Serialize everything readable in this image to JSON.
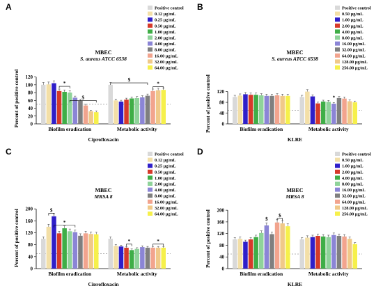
{
  "panels": [
    {
      "letter": "A",
      "title1": "MBEC",
      "title2": "S. aureus ATCC 6538",
      "ylabel": "Percent of positive control",
      "xlabel": "Ciprofloxacin",
      "yticks": [
        0,
        20,
        40,
        60,
        80,
        100,
        120
      ],
      "ymax": 130,
      "groups": [
        "Biofilm eradication",
        "Metabolic activity"
      ],
      "legend": [
        "Positive control",
        "0.12 µg/mL",
        "0.25 µg/mL",
        "0.50 µg/mL",
        "1.00 µg/mL",
        "2.00 µg/mL",
        "4.00 µg/mL",
        "8.00 µg/mL",
        "16.00 µg/mL",
        "32.00 µg/mL",
        "64.00 µg/mL"
      ],
      "colors": [
        "#d9d9d9",
        "#f3dfa7",
        "#2f1fc9",
        "#d63a2a",
        "#3fae47",
        "#8fd39a",
        "#8b85d6",
        "#7f7f7f",
        "#f2a48e",
        "#f0c989",
        "#f6f04b"
      ],
      "series": [
        [
          100,
          101,
          104,
          84,
          82,
          80,
          67,
          59,
          47,
          32,
          30
        ],
        [
          100,
          60,
          57,
          62,
          65,
          66,
          68,
          72,
          84,
          86,
          87
        ]
      ],
      "annotations": [
        "*",
        "$",
        "$",
        "*"
      ]
    },
    {
      "letter": "B",
      "title1": "MBEC",
      "title2": "S. aureus ATCC 6538",
      "ylabel": "Percent of positive control",
      "xlabel": "KLRE",
      "yticks": [
        0,
        40,
        80,
        120
      ],
      "ymax": 150,
      "groups": [
        "Biofilm eradication",
        "Metabolic activity"
      ],
      "legend": [
        "Positive control",
        "0.50 µg/mL",
        "1.00 µg/mL",
        "2.00 µg/mL",
        "4.00 µg/mL",
        "8.00 µg/mL",
        "16.00 µg/mL",
        "32.00 µg/mL",
        "64.00 µg/mL",
        "128.00 µg/mL",
        "256.00 µg/mL"
      ],
      "colors": [
        "#d9d9d9",
        "#f3dfa7",
        "#2f1fc9",
        "#d63a2a",
        "#3fae47",
        "#8fd39a",
        "#8b85d6",
        "#7f7f7f",
        "#f2a48e",
        "#f0c989",
        "#f6f04b"
      ],
      "series": [
        [
          100,
          105,
          110,
          108,
          108,
          106,
          104,
          104,
          106,
          104,
          104
        ],
        [
          100,
          120,
          102,
          76,
          83,
          82,
          75,
          96,
          94,
          84,
          80
        ]
      ],
      "annotations": [
        "*"
      ]
    },
    {
      "letter": "C",
      "title1": "MBEC",
      "title2": "MRSA 8",
      "ylabel": "Percent of positive control",
      "xlabel": "Ciprofloxacin",
      "yticks": [
        0,
        40,
        80,
        120,
        160,
        200
      ],
      "ymax": 205,
      "groups": [
        "Biofilm eradication",
        "Metabolic activity"
      ],
      "legend": [
        "Positive control",
        "0.12 µg/mL",
        "0.25 µg/mL",
        "0.50 µg/mL",
        "1.00 µg/mL",
        "2.00 µg/mL",
        "4.00 µg/mL",
        "8.00 µg/mL",
        "16.00 µg/mL",
        "32.00 µg/mL",
        "64.00 µg/mL"
      ],
      "colors": [
        "#d9d9d9",
        "#f3dfa7",
        "#2f1fc9",
        "#d63a2a",
        "#3fae47",
        "#8fd39a",
        "#8b85d6",
        "#7f7f7f",
        "#f2a48e",
        "#f0c989",
        "#f6f04b"
      ],
      "series": [
        [
          100,
          140,
          175,
          118,
          135,
          125,
          122,
          110,
          118,
          116,
          115
        ],
        [
          100,
          76,
          74,
          70,
          62,
          66,
          72,
          70,
          70,
          70,
          70
        ]
      ],
      "annotations": [
        "$",
        "*",
        "*",
        "*"
      ]
    },
    {
      "letter": "D",
      "title1": "MBEC",
      "title2": "MRSA 8",
      "ylabel": "Percent of positive control",
      "xlabel": "KLRE",
      "yticks": [
        0,
        40,
        80,
        120,
        160,
        200
      ],
      "ymax": 205,
      "groups": [
        "Biofilm eradication",
        "Metabolic activity"
      ],
      "legend": [
        "Positive control",
        "0.50 µg/mL",
        "1.00 µg/mL",
        "2.00 µg/mL",
        "4.00 µg/mL",
        "8.00 µg/mL",
        "16.00 µg/mL",
        "32.00 µg/mL",
        "64.00 µg/mL",
        "128.00 µg/mL",
        "256.00 µg/mL"
      ],
      "colors": [
        "#d9d9d9",
        "#f3dfa7",
        "#2f1fc9",
        "#d63a2a",
        "#3fae47",
        "#8fd39a",
        "#8b85d6",
        "#7f7f7f",
        "#f2a48e",
        "#f0c989",
        "#f6f04b"
      ],
      "series": [
        [
          100,
          102,
          92,
          100,
          108,
          122,
          148,
          118,
          158,
          155,
          145
        ],
        [
          100,
          106,
          108,
          112,
          110,
          108,
          115,
          112,
          110,
          102,
          84
        ]
      ],
      "annotations": [
        "$",
        "$"
      ]
    }
  ]
}
